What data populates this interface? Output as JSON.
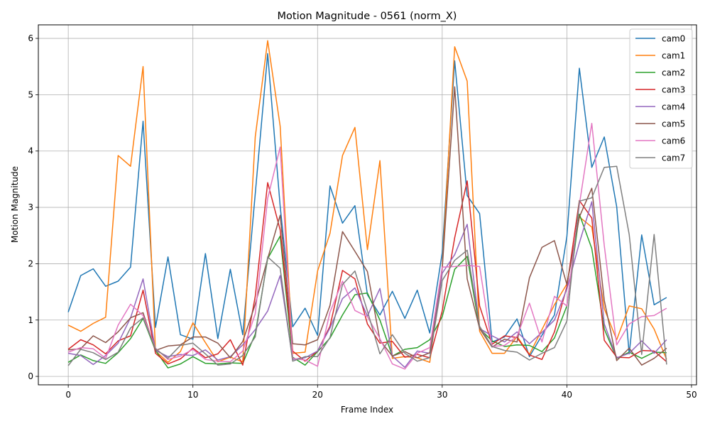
{
  "chart_data": {
    "type": "line",
    "title": "Motion Magnitude - 0561 (norm_X)",
    "xlabel": "Frame Index",
    "ylabel": "Motion Magnitude",
    "xlim": [
      -2.4,
      50.4
    ],
    "ylim": [
      -0.15,
      6.24
    ],
    "xticks": [
      0,
      10,
      20,
      30,
      40,
      50
    ],
    "yticks": [
      0,
      1,
      2,
      3,
      4,
      5,
      6
    ],
    "grid": true,
    "legend_position": "top-right",
    "x": [
      0,
      1,
      2,
      3,
      4,
      5,
      6,
      7,
      8,
      9,
      10,
      11,
      12,
      13,
      14,
      15,
      16,
      17,
      18,
      19,
      20,
      21,
      22,
      23,
      24,
      25,
      26,
      27,
      28,
      29,
      30,
      31,
      32,
      33,
      34,
      35,
      36,
      37,
      38,
      39,
      40,
      41,
      42,
      43,
      44,
      45,
      46,
      47,
      48
    ],
    "series": [
      {
        "name": "cam0",
        "color": "#1f77b4",
        "values": [
          1.14,
          1.79,
          1.91,
          1.6,
          1.69,
          1.94,
          4.53,
          0.87,
          2.12,
          0.74,
          0.66,
          2.18,
          0.67,
          1.9,
          0.74,
          3.24,
          5.73,
          3.02,
          0.88,
          1.21,
          0.73,
          3.38,
          2.72,
          3.03,
          1.45,
          1.09,
          1.51,
          1.03,
          1.53,
          0.77,
          2.19,
          5.6,
          3.21,
          2.89,
          0.61,
          0.7,
          1.02,
          0.35,
          0.73,
          1.09,
          2.48,
          5.47,
          3.71,
          4.25,
          3.01,
          0.4,
          2.51,
          1.27,
          1.4
        ]
      },
      {
        "name": "cam1",
        "color": "#ff7f0e",
        "values": [
          0.91,
          0.8,
          0.94,
          1.05,
          3.92,
          3.73,
          5.5,
          0.45,
          0.25,
          0.44,
          0.95,
          0.6,
          0.26,
          0.34,
          0.26,
          4.25,
          5.96,
          4.44,
          0.41,
          0.43,
          1.87,
          2.54,
          3.92,
          4.42,
          2.25,
          3.83,
          0.32,
          0.35,
          0.33,
          0.25,
          1.92,
          5.85,
          5.24,
          0.8,
          0.41,
          0.41,
          0.71,
          0.39,
          0.83,
          1.27,
          1.64,
          2.83,
          2.65,
          1.2,
          0.65,
          1.25,
          1.2,
          0.84,
          0.3
        ]
      },
      {
        "name": "cam2",
        "color": "#2ca02c",
        "values": [
          0.25,
          0.38,
          0.28,
          0.23,
          0.42,
          0.67,
          1.03,
          0.46,
          0.15,
          0.22,
          0.35,
          0.23,
          0.22,
          0.24,
          0.23,
          0.75,
          2.09,
          2.49,
          0.34,
          0.2,
          0.44,
          0.68,
          1.09,
          1.45,
          1.48,
          1.0,
          0.36,
          0.48,
          0.51,
          0.65,
          1.06,
          1.9,
          2.13,
          0.85,
          0.63,
          0.53,
          0.56,
          0.55,
          0.44,
          0.68,
          1.25,
          2.88,
          2.27,
          0.84,
          0.32,
          0.43,
          0.32,
          0.43,
          0.42
        ]
      },
      {
        "name": "cam3",
        "color": "#d62728",
        "values": [
          0.48,
          0.65,
          0.56,
          0.4,
          0.63,
          0.72,
          1.53,
          0.41,
          0.22,
          0.31,
          0.5,
          0.33,
          0.4,
          0.65,
          0.2,
          1.42,
          3.44,
          2.6,
          0.45,
          0.27,
          0.45,
          0.89,
          1.88,
          1.73,
          0.93,
          0.59,
          0.62,
          0.34,
          0.39,
          0.33,
          1.16,
          2.46,
          3.47,
          1.25,
          0.57,
          0.72,
          0.69,
          0.38,
          0.3,
          0.79,
          1.59,
          3.12,
          2.81,
          0.64,
          0.34,
          0.33,
          0.46,
          0.45,
          0.26
        ]
      },
      {
        "name": "cam4",
        "color": "#9467bd",
        "values": [
          0.41,
          0.37,
          0.21,
          0.37,
          0.59,
          1.04,
          1.73,
          0.46,
          0.35,
          0.39,
          0.37,
          0.47,
          0.29,
          0.35,
          0.56,
          0.83,
          1.16,
          1.79,
          0.3,
          0.33,
          0.45,
          0.86,
          1.38,
          1.57,
          1.07,
          1.56,
          0.36,
          0.16,
          0.45,
          0.41,
          1.83,
          2.16,
          2.7,
          0.85,
          0.72,
          0.61,
          0.79,
          0.58,
          0.78,
          1.0,
          1.55,
          2.37,
          3.1,
          0.93,
          0.33,
          0.41,
          0.63,
          0.41,
          0.65
        ]
      },
      {
        "name": "cam5",
        "color": "#8c564b",
        "values": [
          0.47,
          0.49,
          0.72,
          0.6,
          0.79,
          1.04,
          1.13,
          0.46,
          0.54,
          0.56,
          0.7,
          0.7,
          0.59,
          0.33,
          0.62,
          1.28,
          2.09,
          2.86,
          0.58,
          0.56,
          0.65,
          1.26,
          2.57,
          2.22,
          1.86,
          0.64,
          0.36,
          0.44,
          0.33,
          0.42,
          1.91,
          5.14,
          1.73,
          0.85,
          0.52,
          0.66,
          0.61,
          1.75,
          2.29,
          2.41,
          1.63,
          2.83,
          3.34,
          1.35,
          0.28,
          0.5,
          0.2,
          0.32,
          0.5
        ]
      },
      {
        "name": "cam6",
        "color": "#e377c2",
        "values": [
          0.43,
          0.51,
          0.49,
          0.32,
          0.91,
          1.28,
          1.08,
          0.5,
          0.3,
          0.36,
          0.48,
          0.3,
          0.27,
          0.26,
          0.45,
          1.11,
          3.16,
          4.07,
          0.32,
          0.29,
          0.18,
          1.14,
          1.69,
          1.17,
          1.06,
          0.67,
          0.22,
          0.13,
          0.41,
          0.51,
          1.94,
          1.95,
          1.97,
          1.95,
          0.53,
          0.55,
          0.71,
          1.3,
          0.61,
          1.42,
          1.25,
          3.05,
          4.49,
          2.32,
          0.56,
          0.93,
          1.06,
          1.08,
          1.21
        ]
      },
      {
        "name": "cam7",
        "color": "#7f7f7f",
        "values": [
          0.19,
          0.48,
          0.42,
          0.3,
          0.43,
          0.86,
          1.04,
          0.49,
          0.32,
          0.55,
          0.59,
          0.4,
          0.2,
          0.22,
          0.37,
          0.7,
          2.12,
          1.92,
          0.27,
          0.35,
          0.35,
          0.69,
          1.63,
          1.87,
          1.16,
          0.4,
          0.74,
          0.41,
          0.27,
          0.33,
          1.7,
          2.06,
          2.24,
          0.89,
          0.53,
          0.46,
          0.43,
          0.29,
          0.41,
          0.51,
          0.98,
          3.11,
          3.17,
          3.71,
          3.73,
          2.52,
          0.39,
          2.52,
          0.21
        ]
      }
    ]
  }
}
